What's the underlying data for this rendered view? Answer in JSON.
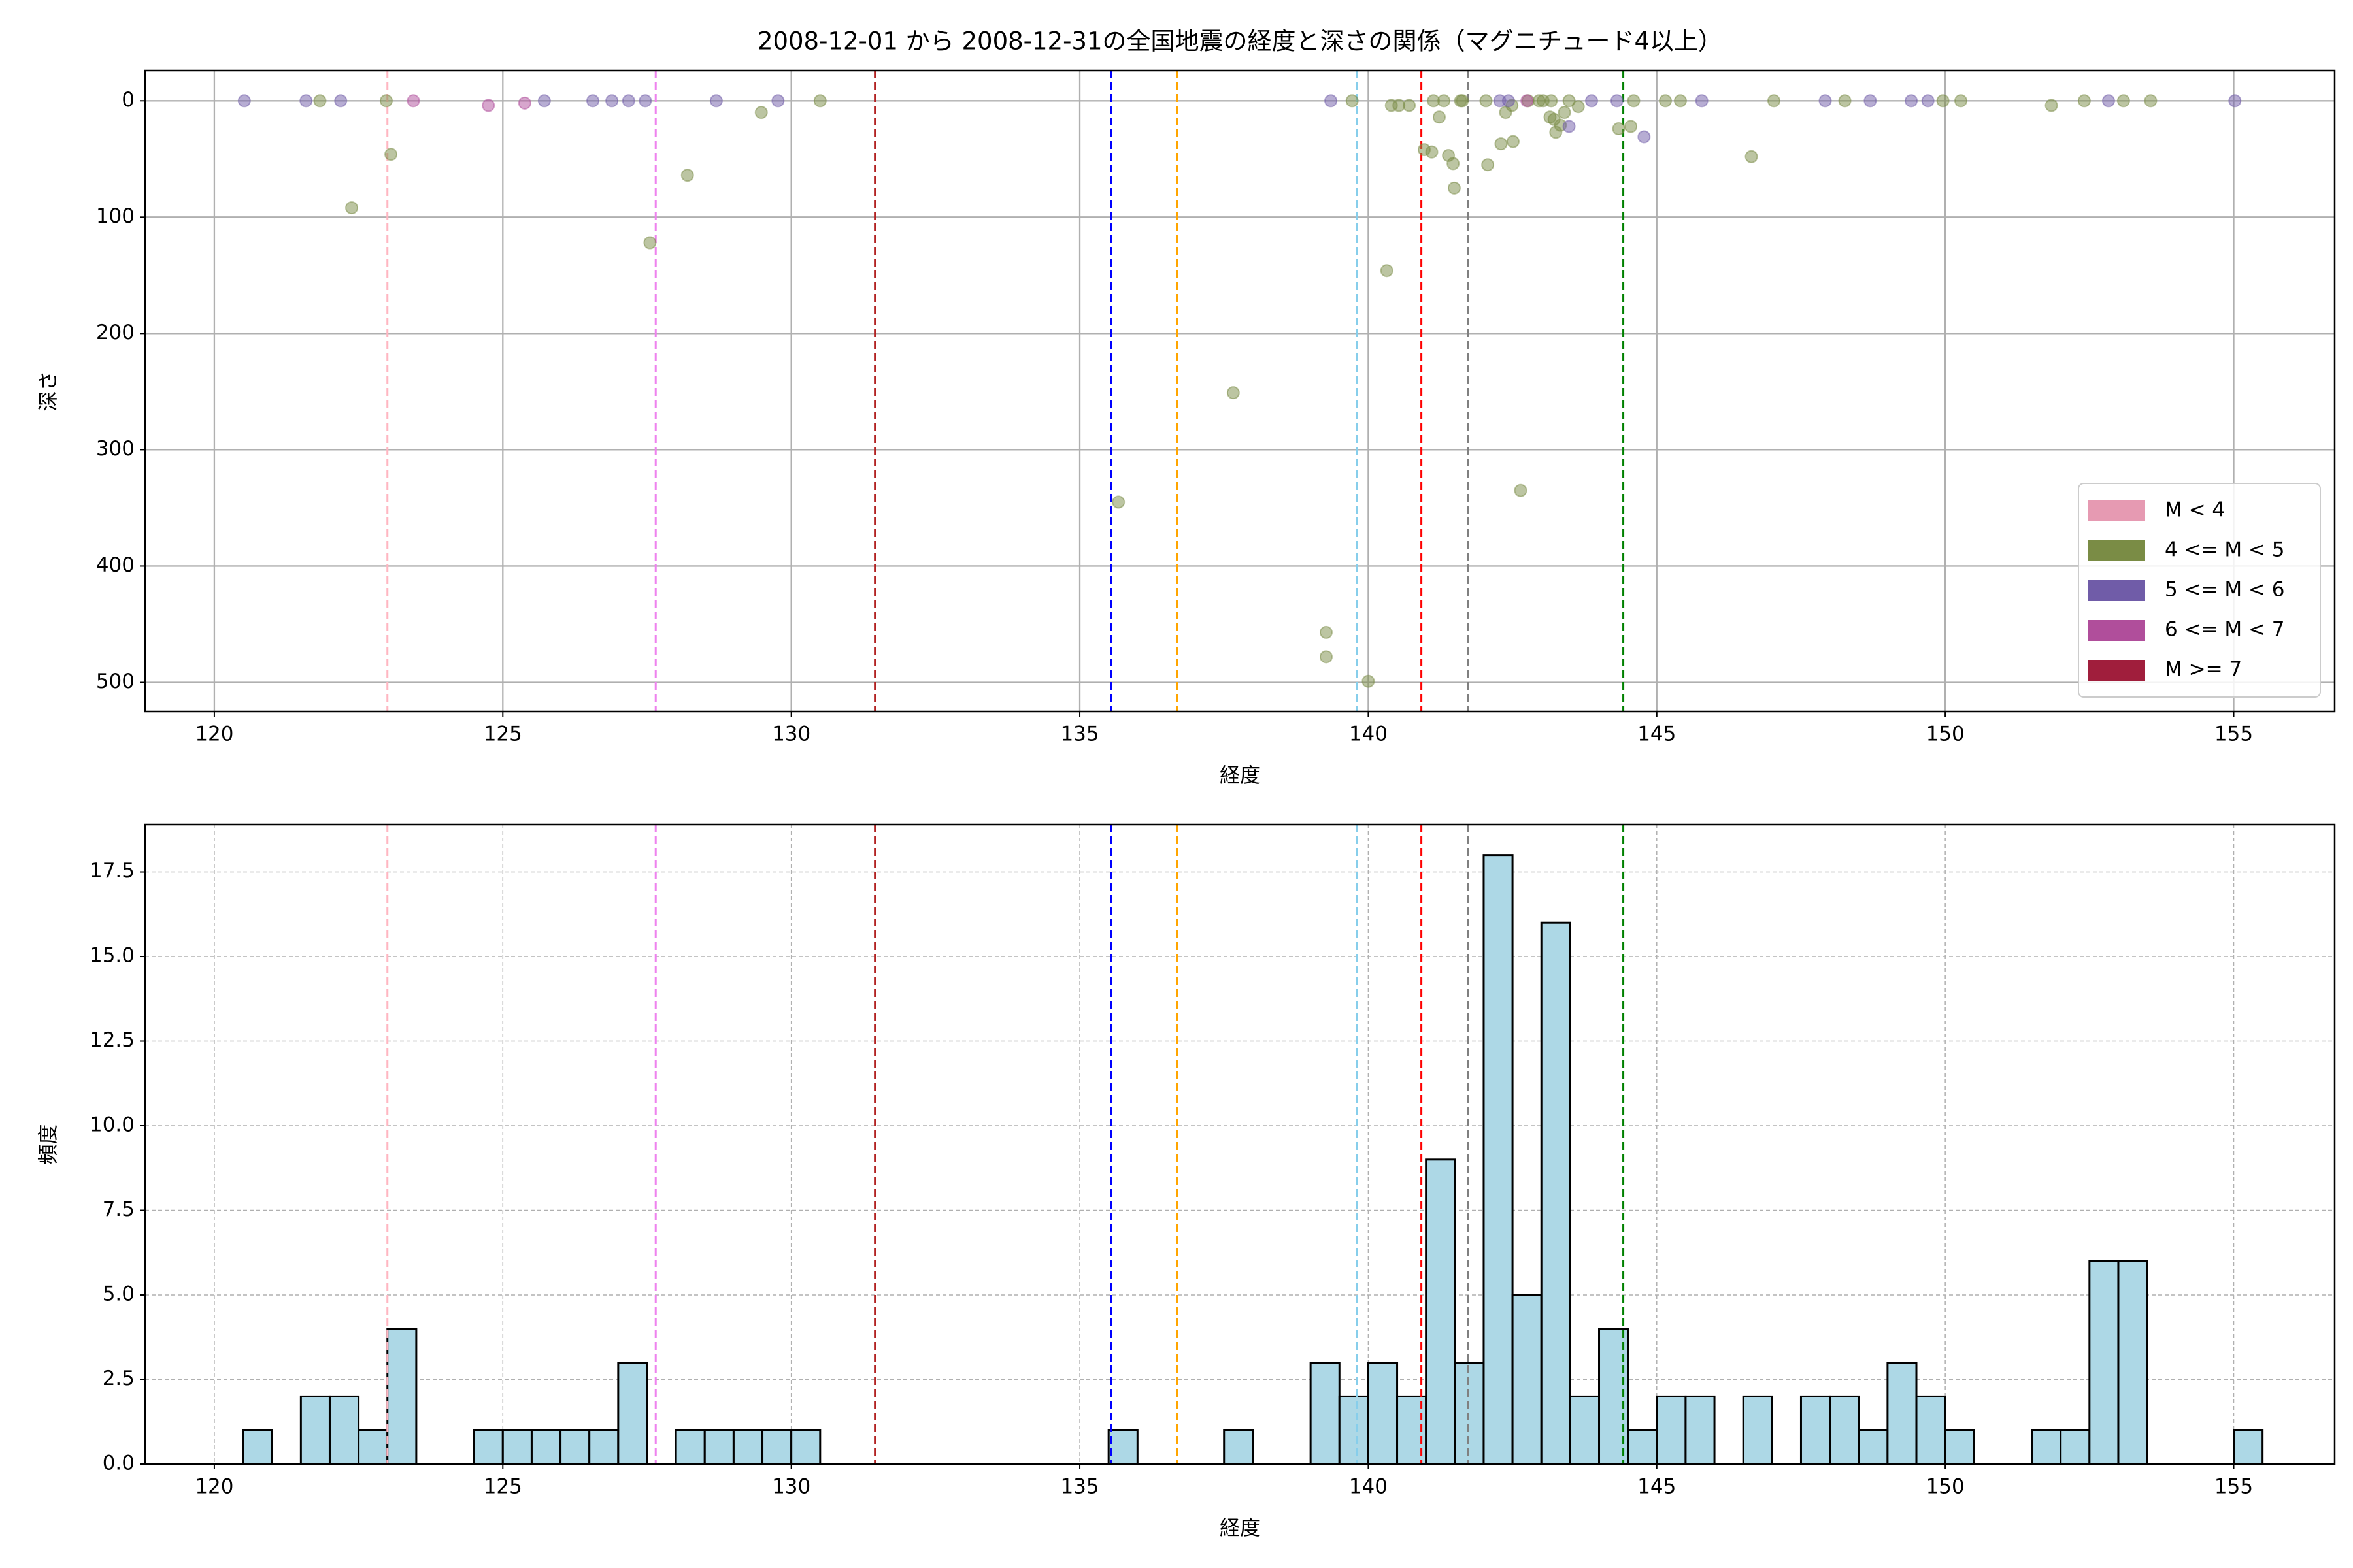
{
  "title": "2008-12-01 から 2008-12-31の全国地震の経度と深さの関係（マグニチュード4以上）",
  "chart_data": [
    {
      "type": "scatter",
      "xlabel": "経度",
      "ylabel": "深さ",
      "xlim": [
        118.8,
        156.75
      ],
      "xticks": [
        120,
        125,
        130,
        135,
        140,
        145,
        150,
        155
      ],
      "ylim": [
        -26,
        525
      ],
      "y_inverted": true,
      "yticks": [
        0,
        100,
        200,
        300,
        400,
        500
      ],
      "grid": true,
      "legend": "lower right",
      "alpha": 0.5,
      "reference_lines": [
        {
          "x": 123.0,
          "color": "#ffb6c1"
        },
        {
          "x": 127.65,
          "color": "#ee82ee"
        },
        {
          "x": 131.45,
          "color": "#b22222"
        },
        {
          "x": 135.54,
          "color": "#0000ff"
        },
        {
          "x": 136.69,
          "color": "#ffa500"
        },
        {
          "x": 139.8,
          "color": "#87ceeb"
        },
        {
          "x": 140.92,
          "color": "#ff0000"
        },
        {
          "x": 141.73,
          "color": "#808080"
        },
        {
          "x": 144.42,
          "color": "#008000"
        }
      ],
      "series": [
        {
          "name": "M < 4",
          "color": "#e69ab2",
          "x": [],
          "values": []
        },
        {
          "name": "4 <= M < 5",
          "color": "#7a8c45",
          "x": [
            121.83,
            122.38,
            122.98,
            123.06,
            128.2,
            127.55,
            129.48,
            130.5,
            135.67,
            137.66,
            139.27,
            139.27,
            139.72,
            140.0,
            140.32,
            140.4,
            140.53,
            140.71,
            140.97,
            141.1,
            141.13,
            141.31,
            141.23,
            141.39,
            141.47,
            141.49,
            141.6,
            141.63,
            142.07,
            142.3,
            142.38,
            142.51,
            142.49,
            143.17,
            143.22,
            143.15,
            143.25,
            143.33,
            143.48,
            143.4,
            143.64,
            142.64,
            144.34,
            144.55,
            144.6,
            145.15,
            145.41,
            146.64,
            147.03,
            148.26,
            149.96,
            150.27,
            151.84,
            152.41,
            153.09,
            153.56,
            142.04,
            142.77,
            142.96,
            143.03
          ],
          "values": [
            0,
            92,
            0,
            46,
            64,
            122,
            10,
            0,
            345,
            251,
            457,
            478,
            0,
            499,
            146,
            4,
            4,
            4,
            42,
            44,
            0,
            0,
            14,
            47,
            54,
            75,
            0,
            0,
            55,
            37,
            10,
            35,
            4,
            0,
            16,
            14,
            27,
            21,
            0,
            10,
            5,
            335,
            24,
            22,
            0,
            0,
            0,
            48,
            0,
            0,
            0,
            0,
            4,
            0,
            0,
            0,
            0,
            0,
            0,
            0
          ]
        },
        {
          "name": "5 <= M < 6",
          "color": "#705ca8",
          "x": [
            120.52,
            121.59,
            122.19,
            125.72,
            126.56,
            126.89,
            127.18,
            127.47,
            128.7,
            129.77,
            139.35,
            142.28,
            142.43,
            143.48,
            143.87,
            144.31,
            145.78,
            147.92,
            148.7,
            149.41,
            149.7,
            152.83,
            155.02,
            144.78
          ],
          "values": [
            0,
            0,
            0,
            0,
            0,
            0,
            0,
            0,
            0,
            0,
            0,
            0,
            0,
            22,
            0,
            0,
            0,
            0,
            0,
            0,
            0,
            0,
            0,
            31
          ]
        },
        {
          "name": "6 <= M < 7",
          "color": "#b04e9b",
          "x": [
            123.45,
            124.75,
            125.38,
            142.75
          ],
          "values": [
            0,
            4,
            2,
            0
          ]
        },
        {
          "name": "M >= 7",
          "color": "#a01e3c",
          "x": [],
          "values": []
        }
      ]
    },
    {
      "type": "histogram",
      "xlabel": "経度",
      "ylabel": "頻度",
      "xlim": [
        118.8,
        156.75
      ],
      "xticks": [
        120,
        125,
        130,
        135,
        140,
        145,
        150,
        155
      ],
      "ylim": [
        0,
        18.9
      ],
      "yticks": [
        {
          "value": 0,
          "label": "0.0"
        },
        2.5,
        {
          "value": 5,
          "label": "5.0"
        },
        7.5,
        {
          "value": 10,
          "label": "10.0"
        },
        12.5,
        {
          "value": 15,
          "label": "15.0"
        },
        17.5
      ],
      "grid": true,
      "color": "#add8e6",
      "reference_lines": [
        {
          "x": 123.0,
          "color": "#ffb6c1"
        },
        {
          "x": 127.65,
          "color": "#ee82ee"
        },
        {
          "x": 131.45,
          "color": "#b22222"
        },
        {
          "x": 135.54,
          "color": "#0000ff"
        },
        {
          "x": 136.69,
          "color": "#ffa500"
        },
        {
          "x": 139.8,
          "color": "#87ceeb"
        },
        {
          "x": 140.92,
          "color": "#ff0000"
        },
        {
          "x": 141.73,
          "color": "#808080"
        },
        {
          "x": 144.42,
          "color": "#008000"
        }
      ],
      "bins": [
        120.5,
        121,
        121.5,
        122,
        122.5,
        123,
        123.5,
        124,
        124.5,
        125,
        125.5,
        126,
        126.5,
        127,
        127.5,
        128,
        128.5,
        129,
        129.5,
        130,
        130.5,
        131,
        131.5,
        132,
        132.5,
        133,
        133.5,
        134,
        134.5,
        135,
        135.5,
        136,
        136.5,
        137,
        137.5,
        138,
        138.5,
        139,
        139.5,
        140,
        140.5,
        141,
        141.5,
        142,
        142.5,
        143,
        143.5,
        144,
        144.5,
        145,
        145.5,
        146,
        146.5,
        147,
        147.5,
        148,
        148.5,
        149,
        149.5,
        150,
        150.5,
        151,
        151.5,
        152,
        152.5,
        153,
        153.5,
        154,
        154.5,
        155,
        155.5
      ],
      "values": [
        1,
        0,
        2,
        2,
        1,
        4,
        0,
        0,
        1,
        1,
        1,
        1,
        1,
        3,
        0,
        1,
        1,
        1,
        1,
        1,
        0,
        0,
        0,
        0,
        0,
        0,
        0,
        0,
        0,
        0,
        1,
        0,
        0,
        0,
        1,
        0,
        0,
        3,
        2,
        3,
        2,
        9,
        3,
        18,
        5,
        16,
        2,
        4,
        1,
        2,
        2,
        0,
        2,
        0,
        2,
        2,
        1,
        3,
        2,
        1,
        0,
        0,
        1,
        1,
        6,
        6,
        0,
        0,
        0,
        1
      ]
    }
  ]
}
